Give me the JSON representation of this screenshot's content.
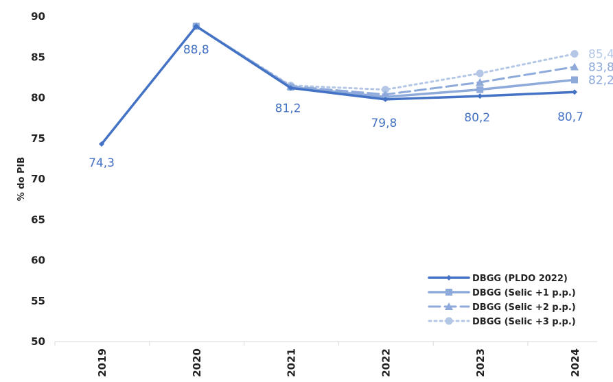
{
  "chart_data": {
    "type": "line",
    "title": "",
    "xlabel": "",
    "ylabel": "% do PIB",
    "ylim": [
      50,
      90
    ],
    "yticks": [
      50,
      55,
      60,
      65,
      70,
      75,
      80,
      85,
      90
    ],
    "categories": [
      "2019",
      "2020",
      "2021",
      "2022",
      "2023",
      "2024"
    ],
    "grid": false,
    "legend_position": "bottom-right",
    "series": [
      {
        "name": "DBGG (PLDO 2022)",
        "values": [
          74.3,
          88.8,
          81.2,
          79.8,
          80.2,
          80.7
        ],
        "labels": [
          "74,3",
          "88,8",
          "81,2",
          "79,8",
          "80,2",
          "80,7"
        ],
        "color": "#4472c4",
        "style": "solid",
        "marker": "diamond"
      },
      {
        "name": "DBGG  (Selic +1 p.p.)",
        "values": [
          null,
          88.8,
          81.3,
          80.1,
          81.0,
          82.2
        ],
        "end_label": "82,2",
        "color": "#8eaadb",
        "style": "solid",
        "marker": "square"
      },
      {
        "name": "DBGG  (Selic +2 p.p.)",
        "values": [
          null,
          88.8,
          81.4,
          80.4,
          81.9,
          83.8
        ],
        "end_label": "83,8",
        "color": "#8eaadb",
        "style": "dashed",
        "marker": "triangle"
      },
      {
        "name": "DBGG  (Selic +3 p.p.)",
        "values": [
          null,
          88.8,
          81.5,
          81.0,
          83.0,
          85.4
        ],
        "end_label": "85,4",
        "color": "#b4c7e7",
        "style": "dotted",
        "marker": "circle"
      }
    ]
  }
}
